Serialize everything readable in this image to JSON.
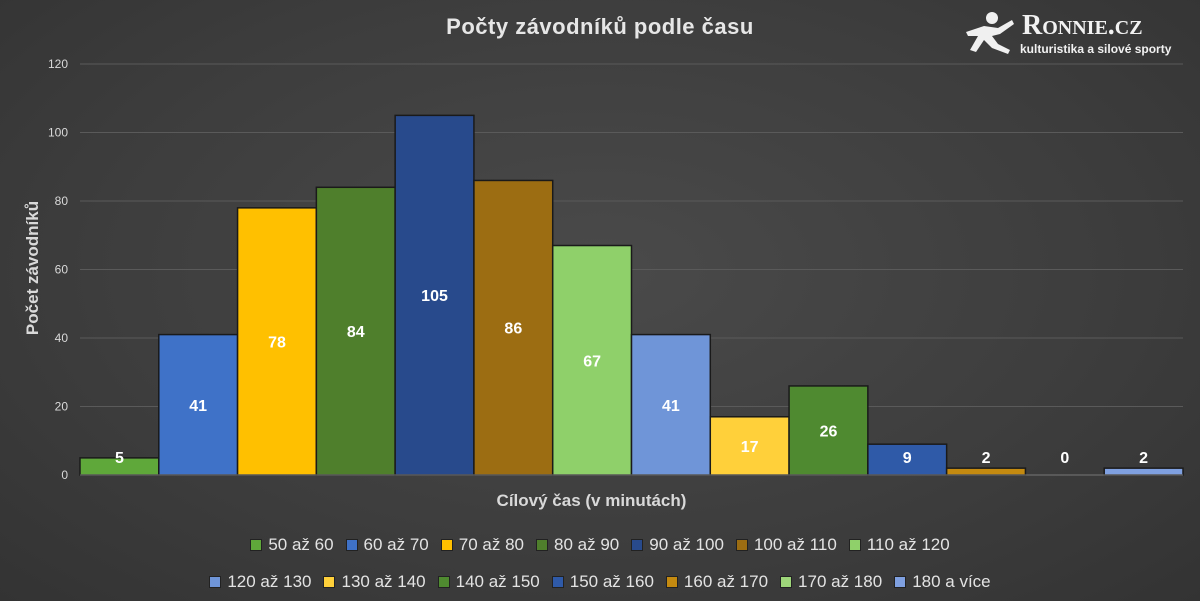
{
  "chart_data": {
    "type": "bar",
    "title": "Počty závodníků podle času",
    "xlabel": "Cílový čas (v minutách)",
    "ylabel": "Počet závodníků",
    "ylim": [
      0,
      120
    ],
    "yticks": [
      0,
      20,
      40,
      60,
      80,
      100,
      120
    ],
    "grid": true,
    "legend_position": "bottom",
    "categories": [
      "50 až 60",
      "60 až 70",
      "70 až 80",
      "80 až 90",
      "90 až 100",
      "100 až 110",
      "110 až 120",
      "120 až 130",
      "130 až 140",
      "140 až 150",
      "150 až 160",
      "160 až 170",
      "170 až 180",
      "180 a více"
    ],
    "values": [
      5,
      41,
      78,
      84,
      105,
      86,
      67,
      41,
      17,
      26,
      9,
      2,
      0,
      2
    ],
    "colors": [
      "#5fa83a",
      "#3f72c8",
      "#ffc000",
      "#4f7f2c",
      "#284a8c",
      "#9c6d12",
      "#8fd06a",
      "#6f95d8",
      "#ffd03a",
      "#4f8a30",
      "#2f5aa8",
      "#c48a10",
      "#9ed67a",
      "#7fa0e0"
    ]
  },
  "logo": {
    "name": "Ronnie.cz",
    "tagline": "kulturistika a silové sporty"
  }
}
